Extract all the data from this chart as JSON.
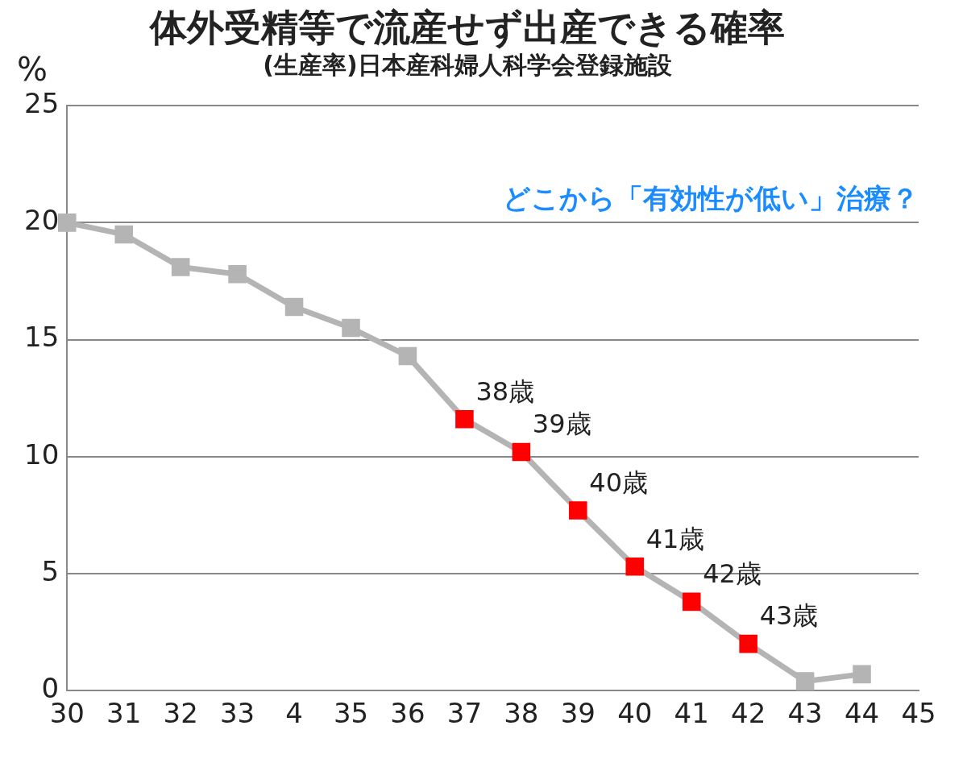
{
  "chart_data": {
    "type": "line",
    "title": "体外受精等で流産せず出産できる確率",
    "subtitle": "(生産率)日本産科婦人科学会登録施設",
    "ylabel": "%",
    "categories": [
      "30",
      "31",
      "32",
      "33",
      "4",
      "35",
      "36",
      "37",
      "38",
      "39",
      "40",
      "41",
      "42",
      "43",
      "44",
      "45"
    ],
    "series": [
      {
        "color": "#b4b4b4",
        "colors": [
          "#b4b4b4",
          "#b4b4b4",
          "#b4b4b4",
          "#b4b4b4",
          "#b4b4b4",
          "#b4b4b4",
          "#b4b4b4",
          "#ff0000",
          "#ff0000",
          "#ff0000",
          "#ff0000",
          "#ff0000",
          "#ff0000",
          "#b4b4b4",
          "#b4b4b4",
          "#b4b4b4"
        ],
        "values": [
          20.0,
          19.5,
          18.1,
          17.8,
          16.4,
          15.5,
          14.3,
          11.6,
          10.2,
          7.7,
          5.3,
          3.8,
          2.0,
          0.4,
          0.7,
          null
        ]
      }
    ],
    "ylim": [
      0,
      25
    ],
    "yticks": [
      0,
      5,
      10,
      15,
      20,
      25
    ],
    "grid": "y",
    "legend": false,
    "marker": "square",
    "line_style": "solid",
    "annotations": [
      "どこから「有効性が低い」治療？",
      {
        "text": "38歳",
        "x": "37",
        "y": 11.6
      },
      {
        "text": "39歳",
        "x": "38",
        "y": 10.2
      },
      {
        "text": "40歳",
        "x": "39",
        "y": 7.7
      },
      {
        "text": "41歳",
        "x": "40",
        "y": 5.3
      },
      {
        "text": "42歳",
        "x": "41",
        "y": 3.8
      },
      {
        "text": "43歳",
        "x": "42",
        "y": 2.0
      }
    ]
  }
}
